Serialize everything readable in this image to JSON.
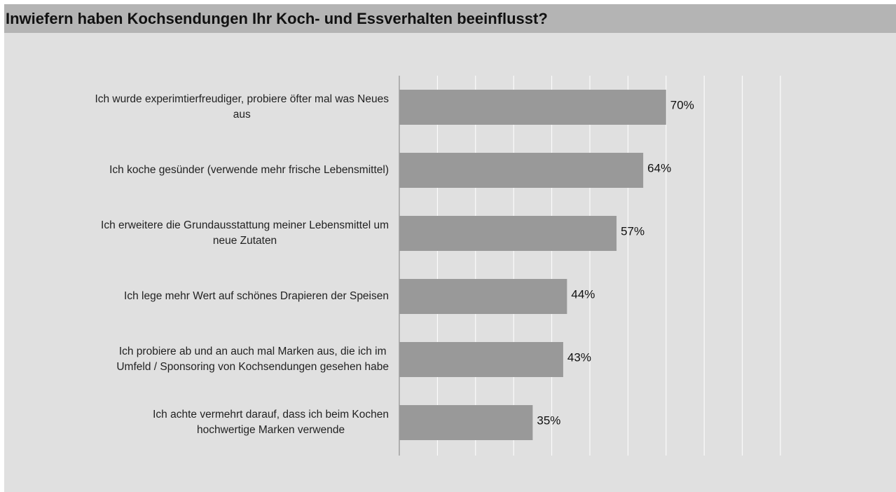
{
  "chart_data": {
    "type": "bar",
    "orientation": "horizontal",
    "title": "Inwiefern haben Kochsendungen Ihr Koch- und Essverhalten beeinflusst?",
    "categories": [
      "Ich wurde experimtierfreudiger, probiere öfter mal was Neues\naus",
      "Ich koche gesünder (verwende mehr frische Lebensmittel)",
      "Ich erweitere die Grundausstattung meiner Lebensmittel um\nneue Zutaten",
      "Ich lege mehr Wert auf schönes Drapieren der Speisen",
      "Ich probiere ab und an auch mal Marken aus, die ich im\nUmfeld / Sponsoring von Kochsendungen gesehen habe",
      "Ich achte vermehrt darauf, dass ich beim Kochen\nhochwertige Marken verwende"
    ],
    "values": [
      70,
      64,
      57,
      44,
      43,
      35
    ],
    "value_labels": [
      "70%",
      "64%",
      "57%",
      "44%",
      "43%",
      "35%"
    ],
    "color": "#999999",
    "xlim": [
      0,
      100
    ],
    "xticks": [
      0,
      10,
      20,
      30,
      40,
      50,
      60,
      70,
      80,
      90,
      100
    ],
    "grid": true
  }
}
